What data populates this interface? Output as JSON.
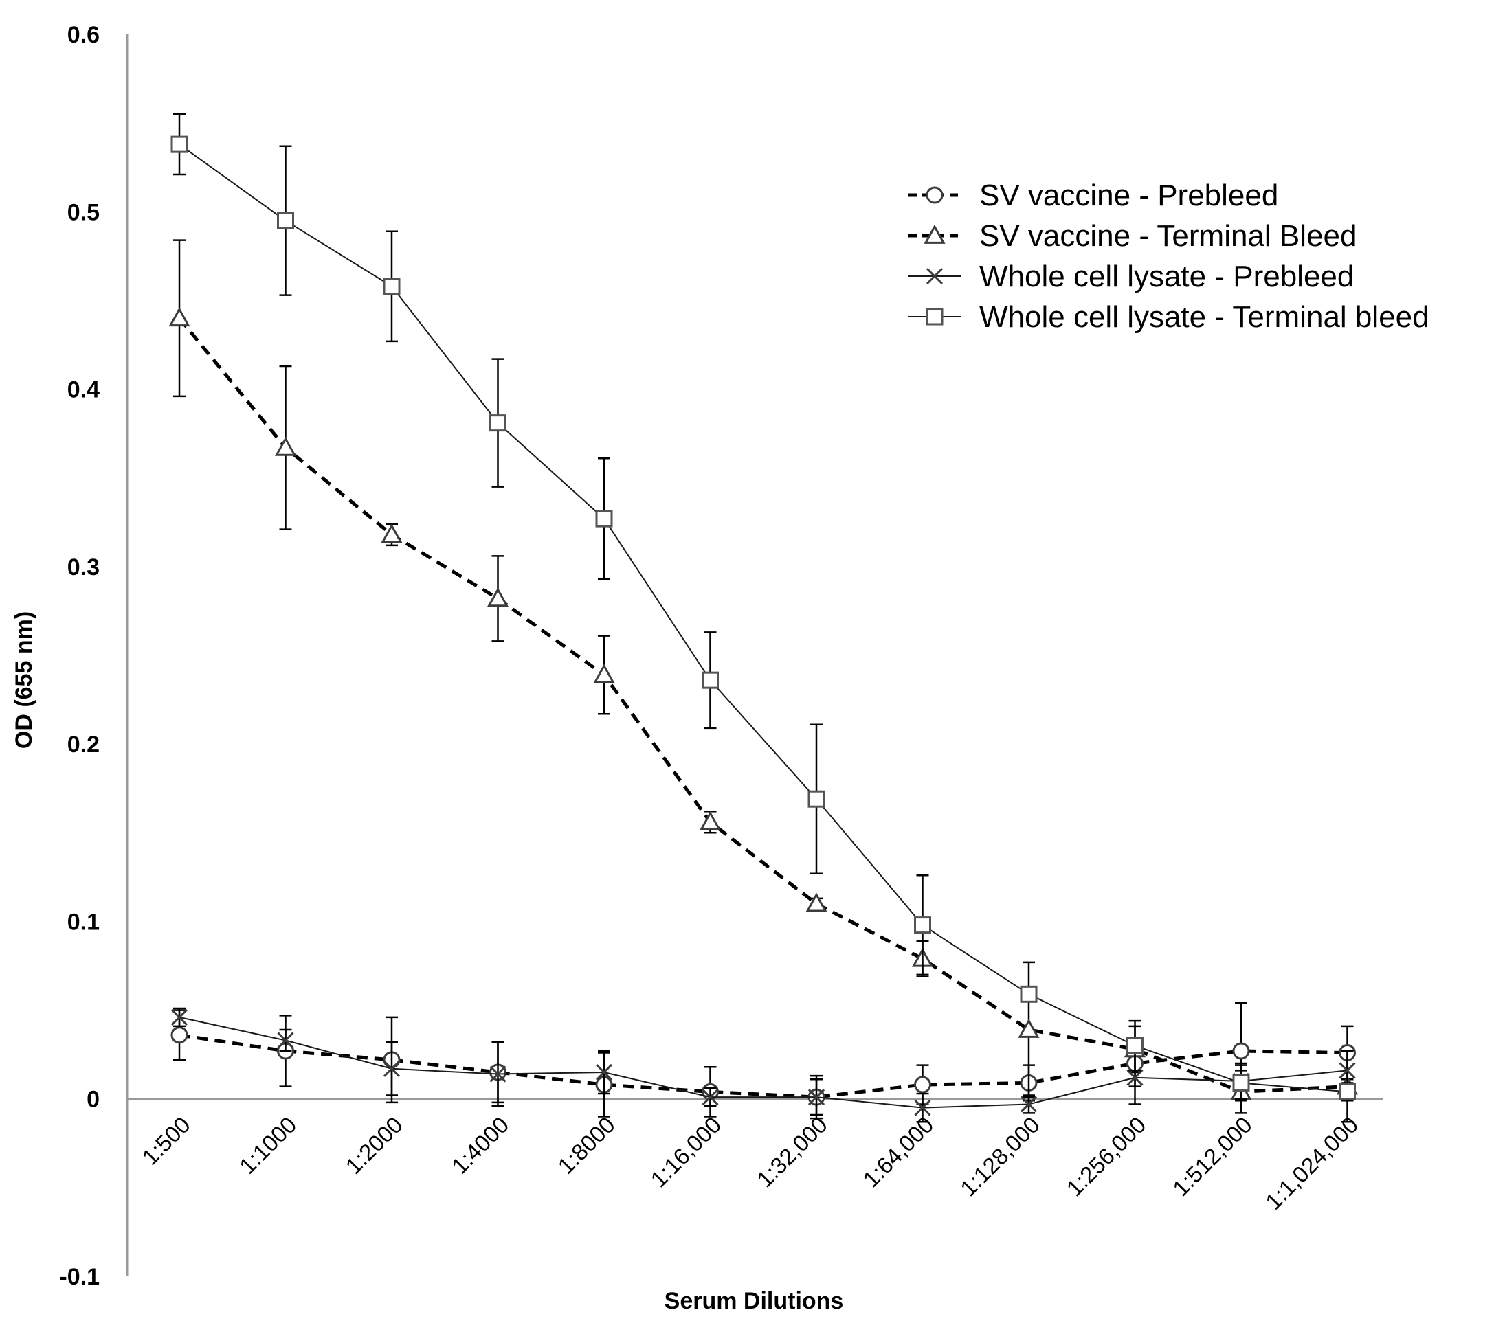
{
  "chart_data": {
    "type": "line",
    "title": "",
    "xlabel": "Serum Dilutions",
    "ylabel": "OD (655 nm)",
    "ylim": [
      -0.1,
      0.6
    ],
    "yticks": [
      "-0.1",
      "0",
      "0.1",
      "0.2",
      "0.3",
      "0.4",
      "0.5",
      "0.6"
    ],
    "yticks_values": [
      -0.1,
      0,
      0.1,
      0.2,
      0.3,
      0.4,
      0.5,
      0.6
    ],
    "categories": [
      "1:500",
      "1:1000",
      "1:2000",
      "1:4000",
      "1:8000",
      "1:16,000",
      "1:32,000",
      "1:64,000",
      "1:128,000",
      "1:256,000",
      "1:512,000",
      "1:1,024,000"
    ],
    "grid": false,
    "legend_position": "top-right",
    "series": [
      {
        "name": "SV vaccine - Prebleed",
        "marker": "circle",
        "line": "dashed",
        "values": [
          0.036,
          0.027,
          0.022,
          0.015,
          0.008,
          0.004,
          0.001,
          0.008,
          0.009,
          0.02,
          0.027,
          0.026
        ],
        "errors": [
          0.014,
          0.02,
          0.024,
          0.017,
          0.018,
          0.014,
          0.012,
          0.011,
          0.01,
          0.013,
          0.027,
          0.015
        ]
      },
      {
        "name": "SV vaccine - Terminal Bleed",
        "marker": "triangle",
        "line": "dashed",
        "values": [
          0.44,
          0.367,
          0.318,
          0.282,
          0.239,
          0.156,
          0.11,
          0.079,
          0.039,
          0.028,
          0.004,
          0.007
        ],
        "errors": [
          0.044,
          0.046,
          0.006,
          0.024,
          0.022,
          0.006,
          0.003,
          0.01,
          0.038,
          0.013,
          0.012,
          0.02
        ]
      },
      {
        "name": "Whole cell lysate - Prebleed",
        "marker": "x",
        "line": "solid",
        "values": [
          0.046,
          0.033,
          0.017,
          0.014,
          0.015,
          0.001,
          0.001,
          -0.005,
          -0.003,
          0.012,
          0.01,
          0.016
        ],
        "errors": [
          0.005,
          0.006,
          0.015,
          0.018,
          0.012,
          0.005,
          0.01,
          0.008,
          0.005,
          0.015,
          0.01,
          0.011
        ]
      },
      {
        "name": "Whole cell lysate - Terminal bleed",
        "marker": "square",
        "line": "solid",
        "values": [
          0.538,
          0.495,
          0.458,
          0.381,
          0.327,
          0.236,
          0.169,
          0.098,
          0.059,
          0.03,
          0.009,
          0.004
        ],
        "errors": [
          0.017,
          0.042,
          0.031,
          0.036,
          0.034,
          0.027,
          0.042,
          0.028,
          0.004,
          0.014,
          0.01,
          0.005
        ]
      }
    ]
  }
}
